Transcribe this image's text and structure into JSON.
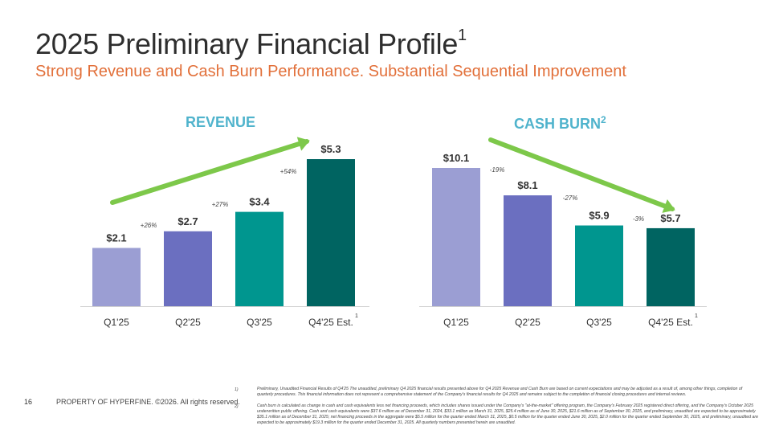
{
  "header": {
    "title": "2025 Preliminary Financial Profile",
    "title_sup": "1",
    "subtitle": "Strong Revenue and Cash Burn Performance.  Substantial Sequential Improvement"
  },
  "colors": {
    "title": "#2e2e2e",
    "subtitle": "#e2703a",
    "chart_title": "#4fb3cc",
    "arrow": "#7dc84a",
    "bars": [
      "#9b9ed3",
      "#6b6fc0",
      "#00968f",
      "#006461"
    ]
  },
  "chart_data": [
    {
      "type": "bar",
      "title": "REVENUE",
      "title_sup": "",
      "categories": [
        "Q1'25",
        "Q2'25",
        "Q3'25",
        "Q4'25 Est."
      ],
      "values": [
        2.1,
        2.7,
        3.4,
        5.3
      ],
      "value_labels": [
        "$2.1",
        "$2.7",
        "$3.4",
        "$5.3"
      ],
      "changes": [
        "+26%",
        "+27%",
        "+54%"
      ],
      "last_category_sup": "1",
      "unit": "$M",
      "ylim": [
        0,
        5.3
      ]
    },
    {
      "type": "bar",
      "title": "CASH BURN",
      "title_sup": "2",
      "categories": [
        "Q1'25",
        "Q2'25",
        "Q3'25",
        "Q4'25 Est."
      ],
      "values": [
        10.1,
        8.1,
        5.9,
        5.7
      ],
      "value_labels": [
        "$10.1",
        "$8.1",
        "$5.9",
        "$5.7"
      ],
      "changes": [
        "-19%",
        "-27%",
        "-3%"
      ],
      "last_category_sup": "1",
      "unit": "$M",
      "ylim": [
        0,
        10.1
      ]
    }
  ],
  "footer": {
    "page_number": "16",
    "property": "PROPERTY OF HYPERFINE. ©2026. All rights reserved."
  },
  "footnotes": [
    {
      "num": "1)",
      "text": "Preliminary, Unaudited Financial Results of Q4'25  The unaudited, preliminary Q4 2025 financial results presented above for Q4 2025 Revenue and Cash Burn are based on current expectations and may be adjusted as a result of, among other things, completion of quarterly procedures. This financial information does not represent a comprehensive statement of the Company's financial results for Q4 2025 and remains subject to the completion of financial closing procedures and internal reviews."
    },
    {
      "num": "2)",
      "text": "Cash burn is calculated as change in cash and cash equivalents less net financing proceeds, which includes shares issued under the Company's \"at-the-market\" offering program, the Company's February 2025 registered direct offering, and the Company's October 2025 underwritten public offering. Cash and cash equivalents were $37.6 million as of December 31, 2024, $33.1 million as March 31, 2025, $25.4 million as of June 30, 2025, $21.6 million as of September 30, 2025, and preliminary, unaudited are expected to be approximately $35.1 million as of December 31, 2025; net financing proceeds in the aggregate were $5.5 million for the quarter ended March 31, 2025, $0.5 million for the quarter ended June 30, 2025, $2.0 million for the quarter ended September 30, 2025, and preliminary, unaudited are expected to be approximately $19.3 million for the quarter ended December 31, 2025. All quarterly numbers presented herein are unaudited."
    }
  ]
}
